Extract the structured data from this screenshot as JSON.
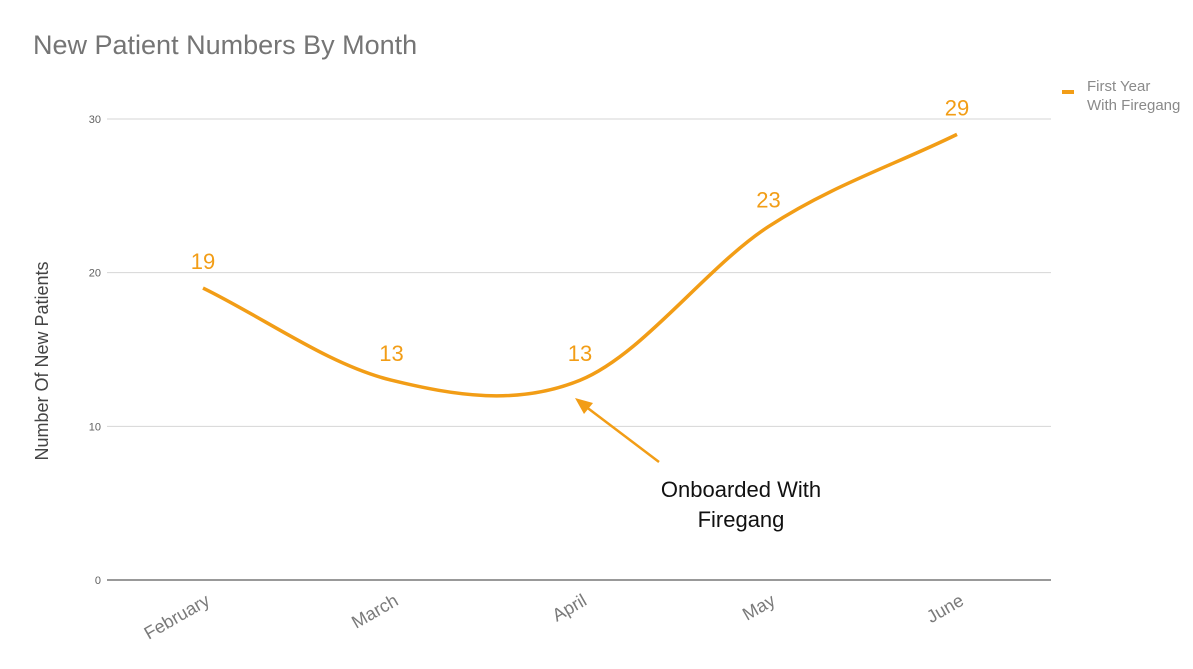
{
  "chart_data": {
    "type": "line",
    "title": "New Patient Numbers By Month",
    "xlabel": "",
    "ylabel": "Number Of New Patients",
    "categories": [
      "February",
      "March",
      "April",
      "May",
      "June"
    ],
    "series": [
      {
        "name": "First Year With Firegang",
        "legend_lines": [
          "First Year",
          "With Firegang"
        ],
        "values": [
          19,
          13,
          13,
          23,
          29
        ],
        "color": "#f29d16"
      }
    ],
    "ylim": [
      0,
      30
    ],
    "yticks": [
      0,
      10,
      20,
      30
    ],
    "grid": true,
    "legend_position": "top-right",
    "data_labels": true,
    "annotation": {
      "lines": [
        "Onboarded With",
        "Firegang"
      ],
      "target_category": "April",
      "arrow_color": "#f29d16"
    }
  }
}
